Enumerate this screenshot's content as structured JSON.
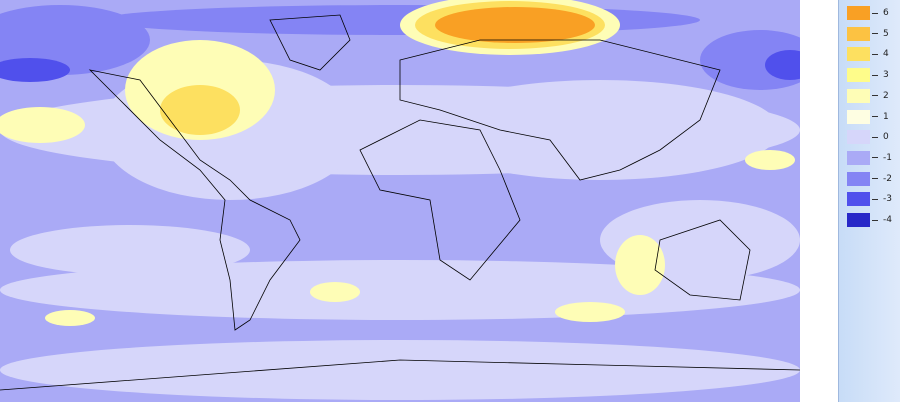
{
  "legend": {
    "items": [
      {
        "label": "6",
        "color": "#f9a024"
      },
      {
        "label": "5",
        "color": "#fcc242"
      },
      {
        "label": "4",
        "color": "#fde060"
      },
      {
        "label": "3",
        "color": "#fefc8a"
      },
      {
        "label": "2",
        "color": "#fefdb6"
      },
      {
        "label": "1",
        "color": "#fefee2"
      },
      {
        "label": "0",
        "color": "#d6d6fa"
      },
      {
        "label": "-1",
        "color": "#aaaaf6"
      },
      {
        "label": "-2",
        "color": "#8484f4"
      },
      {
        "label": "-3",
        "color": "#5050ec"
      },
      {
        "label": "-4",
        "color": "#2828c8"
      }
    ]
  }
}
